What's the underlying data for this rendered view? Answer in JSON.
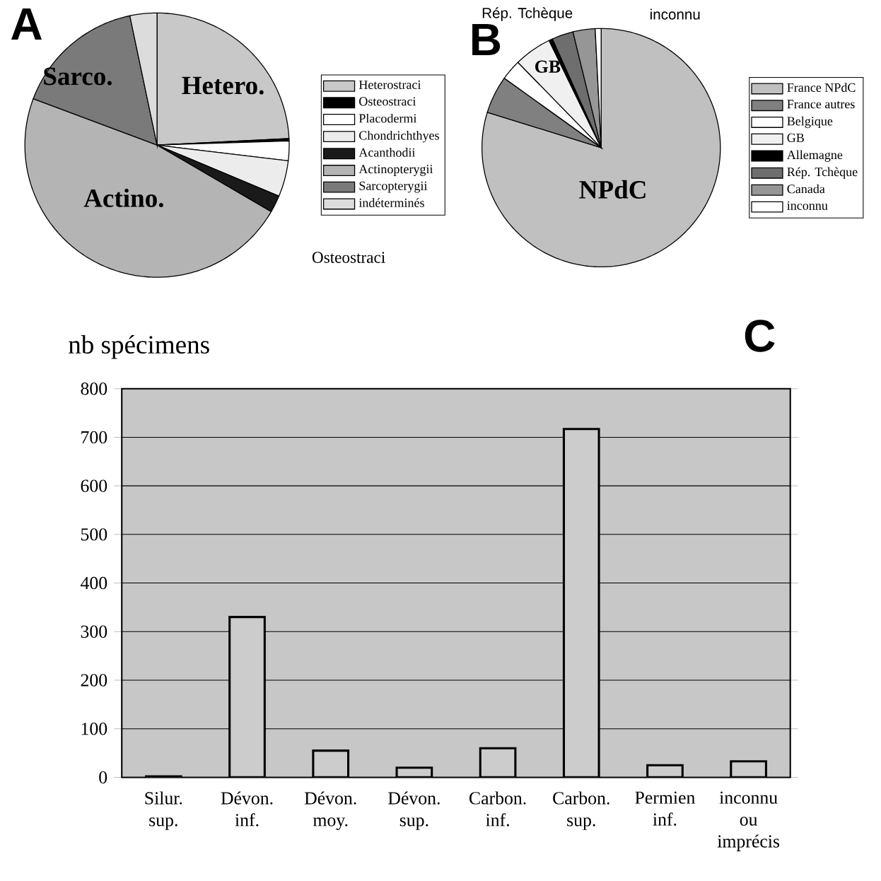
{
  "chart_data": [
    {
      "type": "pie",
      "title": "A",
      "categories": [
        "Heterostraci",
        "Osteostraci",
        "Placodermi",
        "Chondrichthyes",
        "Acanthodii",
        "Actinopterygii",
        "Sarcopterygii",
        "indéterminés"
      ],
      "values": [
        24.2,
        0.3,
        2.4,
        4.4,
        2.1,
        47.3,
        16,
        3.3
      ],
      "colors": [
        "#c8c8c8",
        "#000000",
        "#ffffff",
        "#ececec",
        "#1a1a1a",
        "#b4b4b4",
        "#7a7a7a",
        "#dcdcdc"
      ],
      "legend": "right",
      "annotations": [
        "Hetero.",
        "Actino.",
        "Sarco.",
        "Osteostraci"
      ]
    },
    {
      "type": "pie",
      "title": "B",
      "categories": [
        "France NPdC",
        "France autres",
        "Belgique",
        "GB",
        "Allemagne",
        "Rép. Tchèque",
        "Canada",
        "inconnu"
      ],
      "values": [
        79.8,
        5.1,
        2.8,
        5.1,
        0.5,
        2.9,
        3,
        0.8
      ],
      "colors": [
        "#c0c0c0",
        "#808080",
        "#ffffff",
        "#f0f0f0",
        "#000000",
        "#6e6e6e",
        "#969696",
        "#ffffff"
      ],
      "legend": "right",
      "annotations": [
        "NPdC",
        "GB",
        "Rép. Tchèque",
        "inconnu"
      ]
    },
    {
      "type": "bar",
      "title": "C",
      "ylabel": "nb spécimens",
      "categories": [
        "Silur. sup.",
        "Dévon. inf.",
        "Dévon. moy.",
        "Dévon. sup.",
        "Carbon. inf.",
        "Carbon. sup.",
        "Permien inf.",
        "inconnu ou imprécis"
      ],
      "values": [
        2,
        330,
        55,
        20,
        60,
        717,
        25,
        33
      ],
      "color": "#cccccc",
      "ylim": [
        0,
        800
      ],
      "yticks": [
        0,
        100,
        200,
        300,
        400,
        500,
        600,
        700,
        800
      ],
      "grid": "y"
    }
  ]
}
